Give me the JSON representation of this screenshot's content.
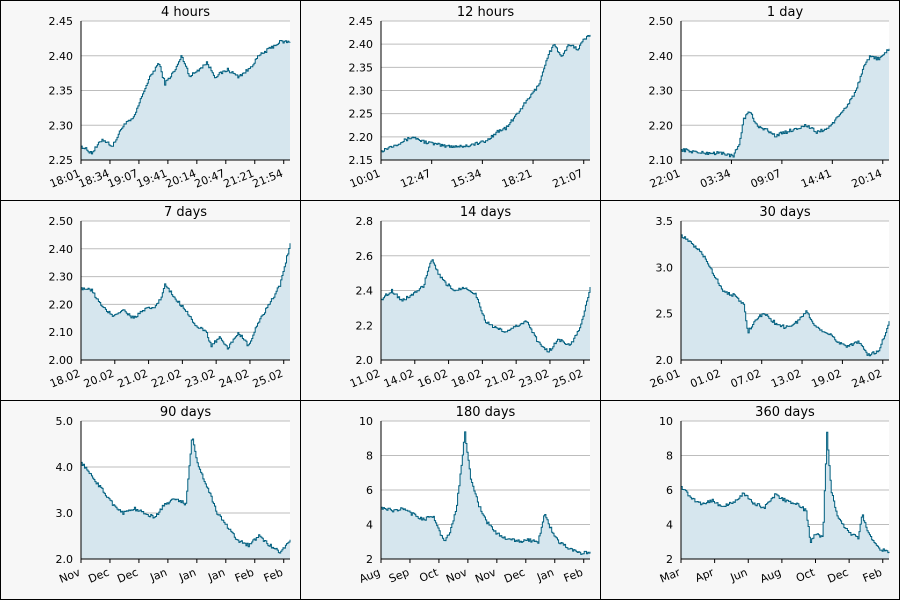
{
  "colors": {
    "line": "#005f7f",
    "fill": "#d6e6ee",
    "grid": "#bdbdbd",
    "plot_bg": "#ffffff",
    "panel_bg": "#f7f7f7"
  },
  "chart_data": [
    {
      "type": "area",
      "title": "4 hours",
      "ylim": [
        2.25,
        2.45
      ],
      "yticks": [
        "2.25",
        "2.30",
        "2.35",
        "2.40",
        "2.45"
      ],
      "xticks": [
        "18:01",
        "18:34",
        "19:07",
        "19:41",
        "20:14",
        "20:47",
        "21:21",
        "21:54"
      ],
      "points": [
        [
          0,
          2.27
        ],
        [
          0.05,
          2.26
        ],
        [
          0.1,
          2.28
        ],
        [
          0.15,
          2.27
        ],
        [
          0.2,
          2.3
        ],
        [
          0.25,
          2.31
        ],
        [
          0.3,
          2.35
        ],
        [
          0.33,
          2.37
        ],
        [
          0.37,
          2.39
        ],
        [
          0.4,
          2.36
        ],
        [
          0.45,
          2.38
        ],
        [
          0.48,
          2.4
        ],
        [
          0.52,
          2.37
        ],
        [
          0.56,
          2.38
        ],
        [
          0.6,
          2.39
        ],
        [
          0.64,
          2.37
        ],
        [
          0.7,
          2.38
        ],
        [
          0.75,
          2.37
        ],
        [
          0.8,
          2.38
        ],
        [
          0.85,
          2.4
        ],
        [
          0.9,
          2.41
        ],
        [
          0.95,
          2.42
        ],
        [
          1.0,
          2.42
        ]
      ]
    },
    {
      "type": "area",
      "title": "12 hours",
      "ylim": [
        2.15,
        2.45
      ],
      "yticks": [
        "2.15",
        "2.20",
        "2.25",
        "2.30",
        "2.35",
        "2.40",
        "2.45"
      ],
      "xticks": [
        "10:01",
        "12:47",
        "15:34",
        "18:21",
        "21:07"
      ],
      "points": [
        [
          0,
          2.17
        ],
        [
          0.05,
          2.18
        ],
        [
          0.1,
          2.19
        ],
        [
          0.15,
          2.2
        ],
        [
          0.2,
          2.19
        ],
        [
          0.3,
          2.18
        ],
        [
          0.4,
          2.18
        ],
        [
          0.5,
          2.19
        ],
        [
          0.55,
          2.21
        ],
        [
          0.6,
          2.22
        ],
        [
          0.65,
          2.25
        ],
        [
          0.7,
          2.28
        ],
        [
          0.75,
          2.31
        ],
        [
          0.78,
          2.35
        ],
        [
          0.8,
          2.38
        ],
        [
          0.83,
          2.4
        ],
        [
          0.86,
          2.37
        ],
        [
          0.9,
          2.4
        ],
        [
          0.94,
          2.39
        ],
        [
          0.97,
          2.41
        ],
        [
          1.0,
          2.42
        ]
      ]
    },
    {
      "type": "area",
      "title": "1 day",
      "ylim": [
        2.1,
        2.5
      ],
      "yticks": [
        "2.10",
        "2.20",
        "2.30",
        "2.40",
        "2.50"
      ],
      "xticks": [
        "22:01",
        "03:34",
        "09:07",
        "14:41",
        "20:14"
      ],
      "points": [
        [
          0,
          2.13
        ],
        [
          0.1,
          2.12
        ],
        [
          0.2,
          2.12
        ],
        [
          0.25,
          2.11
        ],
        [
          0.28,
          2.15
        ],
        [
          0.3,
          2.22
        ],
        [
          0.33,
          2.24
        ],
        [
          0.36,
          2.2
        ],
        [
          0.4,
          2.19
        ],
        [
          0.45,
          2.17
        ],
        [
          0.5,
          2.18
        ],
        [
          0.55,
          2.19
        ],
        [
          0.6,
          2.2
        ],
        [
          0.65,
          2.18
        ],
        [
          0.7,
          2.19
        ],
        [
          0.75,
          2.22
        ],
        [
          0.8,
          2.26
        ],
        [
          0.84,
          2.3
        ],
        [
          0.88,
          2.37
        ],
        [
          0.91,
          2.4
        ],
        [
          0.95,
          2.39
        ],
        [
          1.0,
          2.42
        ]
      ]
    },
    {
      "type": "area",
      "title": "7 days",
      "ylim": [
        2.0,
        2.5
      ],
      "yticks": [
        "2.00",
        "2.10",
        "2.20",
        "2.30",
        "2.40",
        "2.50"
      ],
      "xticks": [
        "18.02",
        "20.02",
        "21.02",
        "22.02",
        "23.02",
        "24.02",
        "25.02"
      ],
      "points": [
        [
          0,
          2.26
        ],
        [
          0.05,
          2.25
        ],
        [
          0.1,
          2.19
        ],
        [
          0.15,
          2.16
        ],
        [
          0.2,
          2.18
        ],
        [
          0.25,
          2.15
        ],
        [
          0.3,
          2.18
        ],
        [
          0.35,
          2.19
        ],
        [
          0.38,
          2.22
        ],
        [
          0.4,
          2.27
        ],
        [
          0.45,
          2.22
        ],
        [
          0.5,
          2.18
        ],
        [
          0.55,
          2.12
        ],
        [
          0.6,
          2.1
        ],
        [
          0.62,
          2.05
        ],
        [
          0.66,
          2.08
        ],
        [
          0.7,
          2.04
        ],
        [
          0.75,
          2.1
        ],
        [
          0.8,
          2.05
        ],
        [
          0.85,
          2.14
        ],
        [
          0.9,
          2.2
        ],
        [
          0.95,
          2.27
        ],
        [
          1.0,
          2.42
        ]
      ]
    },
    {
      "type": "area",
      "title": "14 days",
      "ylim": [
        2.0,
        2.8
      ],
      "yticks": [
        "2.0",
        "2.2",
        "2.4",
        "2.6",
        "2.8"
      ],
      "xticks": [
        "11.02",
        "14.02",
        "16.02",
        "18.02",
        "21.02",
        "23.02",
        "25.02"
      ],
      "points": [
        [
          0,
          2.35
        ],
        [
          0.05,
          2.4
        ],
        [
          0.1,
          2.34
        ],
        [
          0.15,
          2.38
        ],
        [
          0.2,
          2.42
        ],
        [
          0.24,
          2.58
        ],
        [
          0.27,
          2.5
        ],
        [
          0.3,
          2.45
        ],
        [
          0.35,
          2.4
        ],
        [
          0.4,
          2.42
        ],
        [
          0.45,
          2.38
        ],
        [
          0.5,
          2.22
        ],
        [
          0.55,
          2.18
        ],
        [
          0.6,
          2.16
        ],
        [
          0.65,
          2.2
        ],
        [
          0.7,
          2.22
        ],
        [
          0.75,
          2.1
        ],
        [
          0.8,
          2.05
        ],
        [
          0.85,
          2.12
        ],
        [
          0.9,
          2.08
        ],
        [
          0.95,
          2.18
        ],
        [
          1.0,
          2.42
        ]
      ]
    },
    {
      "type": "area",
      "title": "30 days",
      "ylim": [
        2.0,
        3.5
      ],
      "yticks": [
        "2.0",
        "2.5",
        "3.0",
        "3.5"
      ],
      "xticks": [
        "26.01",
        "01.02",
        "07.02",
        "13.02",
        "19.02",
        "24.02"
      ],
      "points": [
        [
          0,
          3.35
        ],
        [
          0.05,
          3.25
        ],
        [
          0.1,
          3.15
        ],
        [
          0.15,
          2.95
        ],
        [
          0.2,
          2.75
        ],
        [
          0.25,
          2.7
        ],
        [
          0.3,
          2.6
        ],
        [
          0.32,
          2.3
        ],
        [
          0.36,
          2.45
        ],
        [
          0.4,
          2.5
        ],
        [
          0.45,
          2.4
        ],
        [
          0.5,
          2.35
        ],
        [
          0.55,
          2.4
        ],
        [
          0.6,
          2.52
        ],
        [
          0.65,
          2.35
        ],
        [
          0.7,
          2.3
        ],
        [
          0.75,
          2.2
        ],
        [
          0.8,
          2.15
        ],
        [
          0.85,
          2.2
        ],
        [
          0.9,
          2.05
        ],
        [
          0.95,
          2.1
        ],
        [
          1.0,
          2.42
        ]
      ]
    },
    {
      "type": "area",
      "title": "90 days",
      "ylim": [
        2.0,
        5.0
      ],
      "yticks": [
        "2.0",
        "3.0",
        "4.0",
        "5.0"
      ],
      "xticks": [
        "Nov",
        "Dec",
        "Dec",
        "Jan",
        "Jan",
        "Jan",
        "Feb",
        "Feb"
      ],
      "points": [
        [
          0,
          4.1
        ],
        [
          0.05,
          3.8
        ],
        [
          0.1,
          3.5
        ],
        [
          0.15,
          3.2
        ],
        [
          0.2,
          3.0
        ],
        [
          0.25,
          3.1
        ],
        [
          0.3,
          3.0
        ],
        [
          0.35,
          2.9
        ],
        [
          0.4,
          3.2
        ],
        [
          0.45,
          3.3
        ],
        [
          0.5,
          3.2
        ],
        [
          0.53,
          4.7
        ],
        [
          0.56,
          4.0
        ],
        [
          0.6,
          3.6
        ],
        [
          0.65,
          3.0
        ],
        [
          0.7,
          2.7
        ],
        [
          0.75,
          2.4
        ],
        [
          0.8,
          2.3
        ],
        [
          0.85,
          2.5
        ],
        [
          0.9,
          2.3
        ],
        [
          0.95,
          2.15
        ],
        [
          1.0,
          2.42
        ]
      ]
    },
    {
      "type": "area",
      "title": "180 days",
      "ylim": [
        2,
        10
      ],
      "yticks": [
        "2",
        "4",
        "6",
        "8",
        "10"
      ],
      "xticks": [
        "Aug",
        "Sep",
        "Oct",
        "Nov",
        "Nov",
        "Dec",
        "Jan",
        "Feb"
      ],
      "points": [
        [
          0,
          5.0
        ],
        [
          0.05,
          4.8
        ],
        [
          0.1,
          4.9
        ],
        [
          0.15,
          4.6
        ],
        [
          0.2,
          4.3
        ],
        [
          0.25,
          4.5
        ],
        [
          0.28,
          3.5
        ],
        [
          0.3,
          3.0
        ],
        [
          0.33,
          3.6
        ],
        [
          0.36,
          5.0
        ],
        [
          0.4,
          9.3
        ],
        [
          0.43,
          6.5
        ],
        [
          0.47,
          5.0
        ],
        [
          0.5,
          4.2
        ],
        [
          0.55,
          3.5
        ],
        [
          0.6,
          3.2
        ],
        [
          0.65,
          3.0
        ],
        [
          0.7,
          3.1
        ],
        [
          0.75,
          3.0
        ],
        [
          0.78,
          4.6
        ],
        [
          0.82,
          3.5
        ],
        [
          0.85,
          3.0
        ],
        [
          0.9,
          2.6
        ],
        [
          0.95,
          2.3
        ],
        [
          1.0,
          2.42
        ]
      ]
    },
    {
      "type": "area",
      "title": "360 days",
      "ylim": [
        2,
        10
      ],
      "yticks": [
        "2",
        "4",
        "6",
        "8",
        "10"
      ],
      "xticks": [
        "Mar",
        "Apr",
        "Jun",
        "Aug",
        "Oct",
        "Dec",
        "Feb"
      ],
      "points": [
        [
          0,
          6.2
        ],
        [
          0.05,
          5.5
        ],
        [
          0.1,
          5.2
        ],
        [
          0.15,
          5.4
        ],
        [
          0.2,
          5.0
        ],
        [
          0.25,
          5.3
        ],
        [
          0.3,
          5.8
        ],
        [
          0.35,
          5.2
        ],
        [
          0.4,
          5.0
        ],
        [
          0.45,
          5.7
        ],
        [
          0.5,
          5.4
        ],
        [
          0.55,
          5.2
        ],
        [
          0.6,
          4.8
        ],
        [
          0.62,
          3.0
        ],
        [
          0.65,
          3.5
        ],
        [
          0.68,
          3.2
        ],
        [
          0.7,
          9.3
        ],
        [
          0.72,
          6.0
        ],
        [
          0.75,
          4.5
        ],
        [
          0.8,
          3.6
        ],
        [
          0.85,
          3.2
        ],
        [
          0.87,
          4.6
        ],
        [
          0.9,
          3.5
        ],
        [
          0.95,
          2.6
        ],
        [
          1.0,
          2.42
        ]
      ]
    }
  ]
}
